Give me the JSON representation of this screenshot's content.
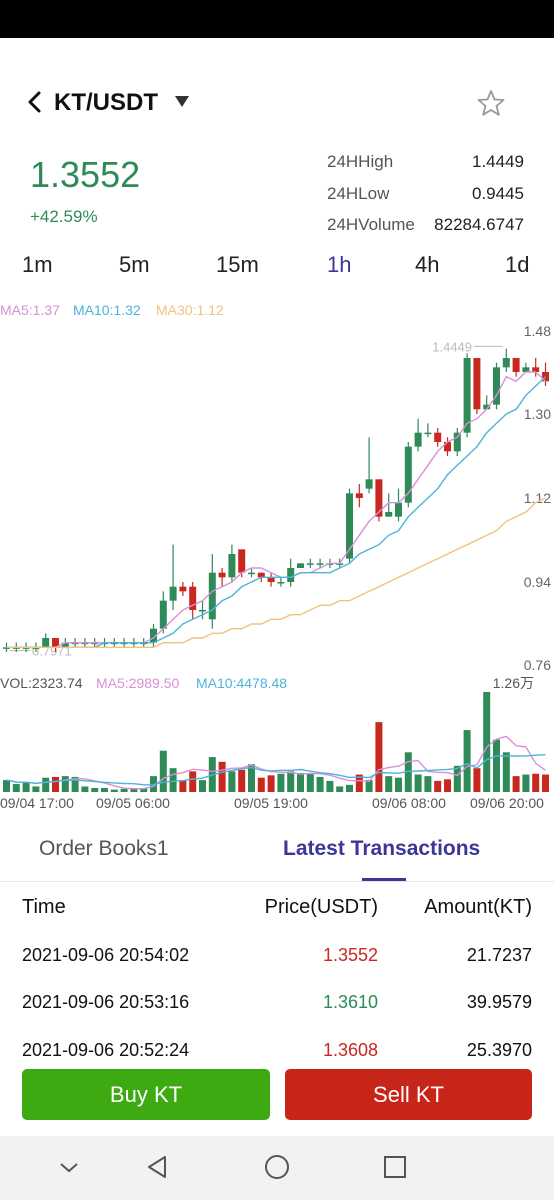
{
  "header": {
    "pair": "KT/USDT"
  },
  "ticker": {
    "price": "1.3552",
    "change": "+42.59%",
    "stats": [
      {
        "label": "24HHigh",
        "value": "1.4449"
      },
      {
        "label": "24HLow",
        "value": "0.9445"
      },
      {
        "label": "24HVolume",
        "value": "82284.6747"
      }
    ]
  },
  "intervals": [
    "1m",
    "5m",
    "15m",
    "1h",
    "4h",
    "1d"
  ],
  "active_interval": "1h",
  "indicators": {
    "price_ma": [
      "MA5:1.37",
      "MA10:1.32",
      "MA30:1.12"
    ],
    "volume": [
      "VOL:2323.74",
      "MA5:2989.50",
      "MA10:4478.48"
    ],
    "volume_axis_max": "1.26万"
  },
  "colors": {
    "up": "#2e8b57",
    "down": "#c8281e",
    "ma5": "#d98fd8",
    "ma10": "#4fb3d9",
    "ma30": "#f2c27a",
    "accent": "#3c3699"
  },
  "chart_data": {
    "type": "candlestick",
    "y_ticks": [
      "1.48",
      "1.30",
      "1.12",
      "0.94",
      "0.76"
    ],
    "ylim": [
      0.76,
      1.48
    ],
    "high_marker": "1.4449",
    "low_marker": "0.7971",
    "x_ticks": [
      "09/04 17:00",
      "09/05 06:00",
      "09/05 19:00",
      "09/06 08:00",
      "09/06 20:00"
    ],
    "candles": [
      [
        0.8,
        0.8,
        0.81,
        0.79
      ],
      [
        0.8,
        0.8,
        0.81,
        0.79
      ],
      [
        0.8,
        0.8,
        0.81,
        0.79
      ],
      [
        0.8,
        0.8,
        0.81,
        0.79
      ],
      [
        0.8,
        0.82,
        0.83,
        0.8
      ],
      [
        0.82,
        0.8,
        0.82,
        0.79
      ],
      [
        0.8,
        0.81,
        0.82,
        0.8
      ],
      [
        0.81,
        0.81,
        0.82,
        0.8
      ],
      [
        0.81,
        0.81,
        0.82,
        0.8
      ],
      [
        0.81,
        0.81,
        0.82,
        0.8
      ],
      [
        0.81,
        0.81,
        0.82,
        0.8
      ],
      [
        0.81,
        0.81,
        0.82,
        0.8
      ],
      [
        0.81,
        0.81,
        0.82,
        0.8
      ],
      [
        0.81,
        0.81,
        0.82,
        0.8
      ],
      [
        0.81,
        0.81,
        0.82,
        0.8
      ],
      [
        0.81,
        0.84,
        0.85,
        0.8
      ],
      [
        0.84,
        0.9,
        0.92,
        0.83
      ],
      [
        0.9,
        0.93,
        1.02,
        0.88
      ],
      [
        0.93,
        0.92,
        0.94,
        0.91
      ],
      [
        0.93,
        0.88,
        0.94,
        0.86
      ],
      [
        0.88,
        0.88,
        0.9,
        0.86
      ],
      [
        0.86,
        0.96,
        1.0,
        0.84
      ],
      [
        0.96,
        0.95,
        0.97,
        0.93
      ],
      [
        0.95,
        1.0,
        1.02,
        0.94
      ],
      [
        1.01,
        0.96,
        1.01,
        0.95
      ],
      [
        0.96,
        0.96,
        0.97,
        0.95
      ],
      [
        0.96,
        0.95,
        0.96,
        0.94
      ],
      [
        0.95,
        0.94,
        0.96,
        0.93
      ],
      [
        0.94,
        0.94,
        0.95,
        0.93
      ],
      [
        0.94,
        0.97,
        0.99,
        0.93
      ],
      [
        0.97,
        0.98,
        0.98,
        0.97
      ],
      [
        0.98,
        0.98,
        0.99,
        0.97
      ],
      [
        0.98,
        0.98,
        0.99,
        0.97
      ],
      [
        0.98,
        0.98,
        0.99,
        0.97
      ],
      [
        0.98,
        0.98,
        0.99,
        0.97
      ],
      [
        0.99,
        1.13,
        1.14,
        0.98
      ],
      [
        1.13,
        1.12,
        1.15,
        1.1
      ],
      [
        1.14,
        1.16,
        1.25,
        1.13
      ],
      [
        1.16,
        1.08,
        1.16,
        1.07
      ],
      [
        1.08,
        1.09,
        1.13,
        1.08
      ],
      [
        1.08,
        1.11,
        1.14,
        1.07
      ],
      [
        1.11,
        1.23,
        1.24,
        1.1
      ],
      [
        1.23,
        1.26,
        1.29,
        1.22
      ],
      [
        1.26,
        1.26,
        1.28,
        1.25
      ],
      [
        1.26,
        1.24,
        1.27,
        1.23
      ],
      [
        1.24,
        1.22,
        1.25,
        1.21
      ],
      [
        1.22,
        1.26,
        1.27,
        1.21
      ],
      [
        1.26,
        1.42,
        1.43,
        1.25
      ],
      [
        1.42,
        1.31,
        1.42,
        1.3
      ],
      [
        1.31,
        1.32,
        1.34,
        1.31
      ],
      [
        1.32,
        1.4,
        1.41,
        1.31
      ],
      [
        1.4,
        1.42,
        1.44,
        1.39
      ],
      [
        1.42,
        1.39,
        1.42,
        1.38
      ],
      [
        1.39,
        1.4,
        1.41,
        1.39
      ],
      [
        1.4,
        1.39,
        1.42,
        1.38
      ],
      [
        1.39,
        1.37,
        1.41,
        1.36
      ]
    ],
    "ma5": [
      0.8,
      0.8,
      0.8,
      0.8,
      0.8,
      0.8,
      0.81,
      0.81,
      0.81,
      0.81,
      0.81,
      0.81,
      0.81,
      0.81,
      0.81,
      0.82,
      0.84,
      0.86,
      0.88,
      0.89,
      0.9,
      0.92,
      0.93,
      0.94,
      0.96,
      0.97,
      0.97,
      0.96,
      0.95,
      0.95,
      0.96,
      0.96,
      0.97,
      0.98,
      0.98,
      1.01,
      1.04,
      1.07,
      1.09,
      1.11,
      1.11,
      1.13,
      1.16,
      1.19,
      1.22,
      1.24,
      1.25,
      1.28,
      1.29,
      1.31,
      1.34,
      1.38,
      1.37,
      1.39,
      1.39,
      1.37
    ],
    "ma10": [
      0.8,
      0.8,
      0.8,
      0.8,
      0.8,
      0.8,
      0.8,
      0.8,
      0.8,
      0.8,
      0.81,
      0.81,
      0.81,
      0.81,
      0.81,
      0.81,
      0.82,
      0.83,
      0.85,
      0.86,
      0.87,
      0.88,
      0.9,
      0.91,
      0.93,
      0.94,
      0.95,
      0.95,
      0.95,
      0.95,
      0.96,
      0.96,
      0.96,
      0.96,
      0.97,
      0.98,
      1.0,
      1.01,
      1.02,
      1.04,
      1.05,
      1.08,
      1.1,
      1.12,
      1.14,
      1.17,
      1.19,
      1.21,
      1.23,
      1.26,
      1.28,
      1.3,
      1.31,
      1.34,
      1.36,
      1.38
    ],
    "ma30": [
      0.8,
      0.8,
      0.8,
      0.8,
      0.8,
      0.8,
      0.8,
      0.8,
      0.8,
      0.8,
      0.8,
      0.8,
      0.8,
      0.8,
      0.8,
      0.8,
      0.81,
      0.81,
      0.81,
      0.82,
      0.82,
      0.83,
      0.83,
      0.84,
      0.84,
      0.85,
      0.85,
      0.86,
      0.86,
      0.87,
      0.87,
      0.88,
      0.89,
      0.89,
      0.9,
      0.9,
      0.91,
      0.92,
      0.93,
      0.94,
      0.95,
      0.96,
      0.97,
      0.98,
      0.99,
      1.0,
      1.01,
      1.02,
      1.03,
      1.04,
      1.05,
      1.07,
      1.08,
      1.09,
      1.11,
      1.12
    ],
    "volumes": [
      1500,
      1000,
      1200,
      700,
      1800,
      1900,
      2000,
      1900,
      700,
      500,
      500,
      300,
      400,
      400,
      500,
      2000,
      5200,
      3000,
      1500,
      2600,
      1500,
      4400,
      3800,
      2600,
      2800,
      3500,
      1800,
      2100,
      2300,
      2600,
      2400,
      2300,
      1900,
      1400,
      700,
      900,
      2200,
      1500,
      8800,
      2000,
      1800,
      5000,
      2200,
      2000,
      1400,
      1600,
      3300,
      7800,
      3000,
      12600,
      6600,
      5000,
      2000,
      2200,
      2300,
      2200
    ]
  },
  "tabs": {
    "order_books": "Order Books1",
    "latest": "Latest Transactions"
  },
  "transactions": {
    "headers": {
      "time": "Time",
      "price": "Price(USDT)",
      "amount": "Amount(KT)"
    },
    "rows": [
      {
        "time": "2021-09-06 20:54:02",
        "price": "1.3552",
        "amount": "21.7237",
        "side": "sell"
      },
      {
        "time": "2021-09-06 20:53:16",
        "price": "1.3610",
        "amount": "39.9579",
        "side": "buy"
      },
      {
        "time": "2021-09-06 20:52:24",
        "price": "1.3608",
        "amount": "25.3970",
        "side": "sell"
      }
    ]
  },
  "actions": {
    "buy": "Buy KT",
    "sell": "Sell KT"
  },
  "icons": [
    "back-arrow-icon",
    "dropdown-triangle-icon",
    "star-icon",
    "nav-down-icon",
    "nav-back-icon",
    "nav-home-icon",
    "nav-recents-icon"
  ]
}
